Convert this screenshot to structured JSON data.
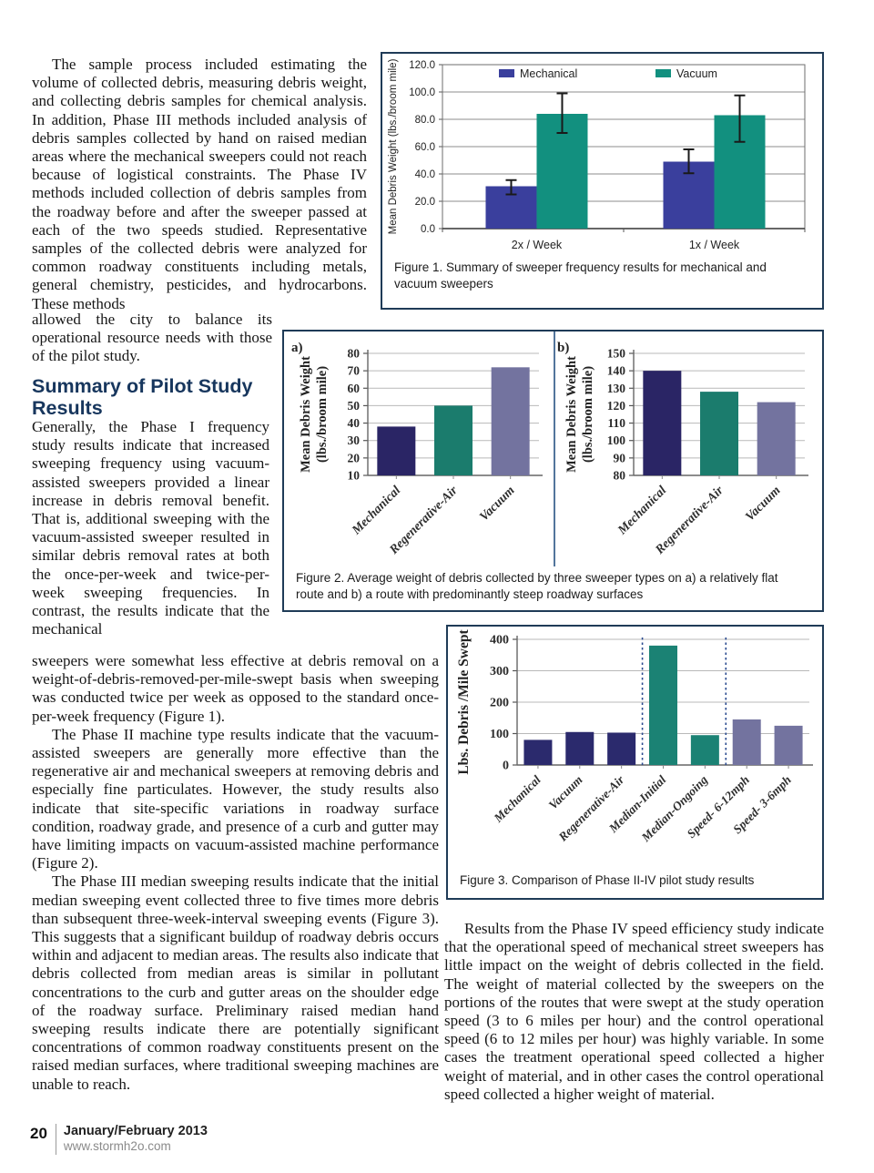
{
  "article": {
    "p1a": "The sample process included estimating the volume of collected debris, measuring debris weight, and collecting debris samples for chemical analysis. In addition, Phase III methods included analysis of debris samples collected by hand on raised median areas where the mechanical sweepers could not reach because of logistical constraints. The Phase IV methods included collection of debris samples from the roadway before and after the sweeper passed at each of the two speeds studied. Representative samples of the collected debris were analyzed for common roadway constituents including metals, general chemistry, pesticides, and hydrocarbons. These methods",
    "p1b": "allowed the city to balance its operational resource needs with those of the pilot study.",
    "heading": "Summary of Pilot Study Results",
    "p2": "Generally, the Phase I frequency study results indicate that increased sweeping frequency using vacuum-assisted sweepers provided a linear increase in debris removal benefit. That is, additional sweeping with the vacuum-assisted sweeper resulted in similar debris removal rates at both the once-per-week and twice-per-week sweeping frequencies. In contrast, the results indicate that the mechanical",
    "p2b": "sweepers were somewhat less effective at debris removal on a weight-of-debris-removed-per-mile-swept basis when sweeping was conducted twice per week as opposed to the standard once-per-week frequency (Figure 1).",
    "p3": "The Phase II machine type results indicate that the vacuum-assisted sweepers are generally more effective than the regenerative air and mechanical sweepers at removing debris and especially fine particulates. However, the study results also indicate that site-specific variations in roadway surface condition, roadway grade, and presence of a curb and gutter may have limiting impacts on vacuum-assisted machine performance (Figure 2).",
    "p4": "The Phase III median sweeping results indicate that the initial median sweeping event collected three to five times more debris than subsequent three-week-interval sweeping events (Figure 3). This suggests that a significant buildup of roadway debris occurs within and adjacent to median areas. The results also indicate that debris collected from median areas is similar in pollutant concentrations to the curb and gutter areas on the shoulder edge of the roadway surface. Preliminary raised median hand sweeping results indicate there are potentially significant concentrations of common roadway constituents present on the raised median surfaces, where traditional sweeping machines are unable to reach.",
    "p5": "Results from the Phase IV speed efficiency study indicate that the operational speed of mechanical street sweepers has little impact on the weight of debris collected in the field. The weight of material collected by the sweepers on the portions of the routes that were swept at the study operation speed (3 to 6 miles per hour) and the control operational speed (6 to 12 miles per hour) was highly variable. In some cases the treatment operational speed collected a higher weight of material, and in other cases the control operational speed collected a higher weight of material."
  },
  "figures": {
    "fig1": {
      "caption": "Figure 1. Summary of sweeper frequency results for mechanical and vacuum sweepers"
    },
    "fig2": {
      "caption": "Figure 2. Average weight of debris collected by three sweeper types on a) a relatively flat route and b) a route with predominantly steep roadway surfaces"
    },
    "fig3": {
      "caption": "Figure 3. Comparison of Phase II-IV pilot study results"
    }
  },
  "footer": {
    "page_number": "20",
    "issue": "January/February 2013",
    "website": "www.stormh2o.com"
  },
  "chart_data": [
    {
      "id": "figure1",
      "type": "bar",
      "grouped": true,
      "ylabel": "Mean Debris Weight (lbs./broom mile)",
      "categories": [
        "2x / Week",
        "1x / Week"
      ],
      "series": [
        {
          "name": "Mechanical",
          "color": "#3a3f9d",
          "values": [
            31,
            49
          ],
          "error_low": [
            25,
            40.5
          ],
          "error_high": [
            35.5,
            58
          ]
        },
        {
          "name": "Vacuum",
          "color": "#12907f",
          "values": [
            84,
            83
          ],
          "error_low": [
            70,
            63.5
          ],
          "error_high": [
            99,
            97.5
          ]
        }
      ],
      "ylim": [
        0,
        120
      ],
      "yticks": [
        0,
        20,
        40,
        60,
        80,
        100,
        120
      ],
      "ytick_labels": [
        "0.0",
        "20.0",
        "40.0",
        "60.0",
        "80.0",
        "100.0",
        "120.0"
      ],
      "legend_position": "top",
      "grid": true
    },
    {
      "id": "figure2a",
      "type": "bar",
      "panel_label": "a)",
      "ylabel_lines": [
        "Mean Debris Weight",
        "(lbs./broom mile)"
      ],
      "categories": [
        "Mechanical",
        "Regenerative-Air",
        "Vacuum"
      ],
      "values": [
        38,
        50,
        72
      ],
      "colors": [
        "#2a2565",
        "#1b7c6d",
        "#73739f"
      ],
      "ylim": [
        10,
        80
      ],
      "yticks": [
        10,
        20,
        30,
        40,
        50,
        60,
        70,
        80
      ],
      "grid": true
    },
    {
      "id": "figure2b",
      "type": "bar",
      "panel_label": "b)",
      "ylabel_lines": [
        "Mean Debris Weight",
        "(lbs./broom mile)"
      ],
      "categories": [
        "Mechanical",
        "Regenerative-Air",
        "Vacuum"
      ],
      "values": [
        140,
        128,
        122
      ],
      "colors": [
        "#2a2565",
        "#1b7c6d",
        "#73739f"
      ],
      "ylim": [
        80,
        150
      ],
      "yticks": [
        80,
        90,
        100,
        110,
        120,
        130,
        140,
        150
      ],
      "grid": true
    },
    {
      "id": "figure3",
      "type": "bar",
      "ylabel": "Lbs. Debris /Mile Swept",
      "categories": [
        "Mechanical",
        "Vacuum",
        "Regenerative-Air",
        "Median-Initial",
        "Median-Ongoing",
        "Speed- 6-12mph",
        "Speed- 3-6mph"
      ],
      "values": [
        80,
        105,
        103,
        380,
        95,
        145,
        125
      ],
      "colors": [
        "#2b2a6d",
        "#2b2a6d",
        "#2b2a6d",
        "#1b8274",
        "#1b8274",
        "#73739f",
        "#73739f"
      ],
      "ylim": [
        0,
        400
      ],
      "yticks": [
        0,
        100,
        200,
        300,
        400
      ],
      "separators_after": [
        2,
        4
      ],
      "separator_color": "#2a4a8f",
      "grid": true
    }
  ]
}
